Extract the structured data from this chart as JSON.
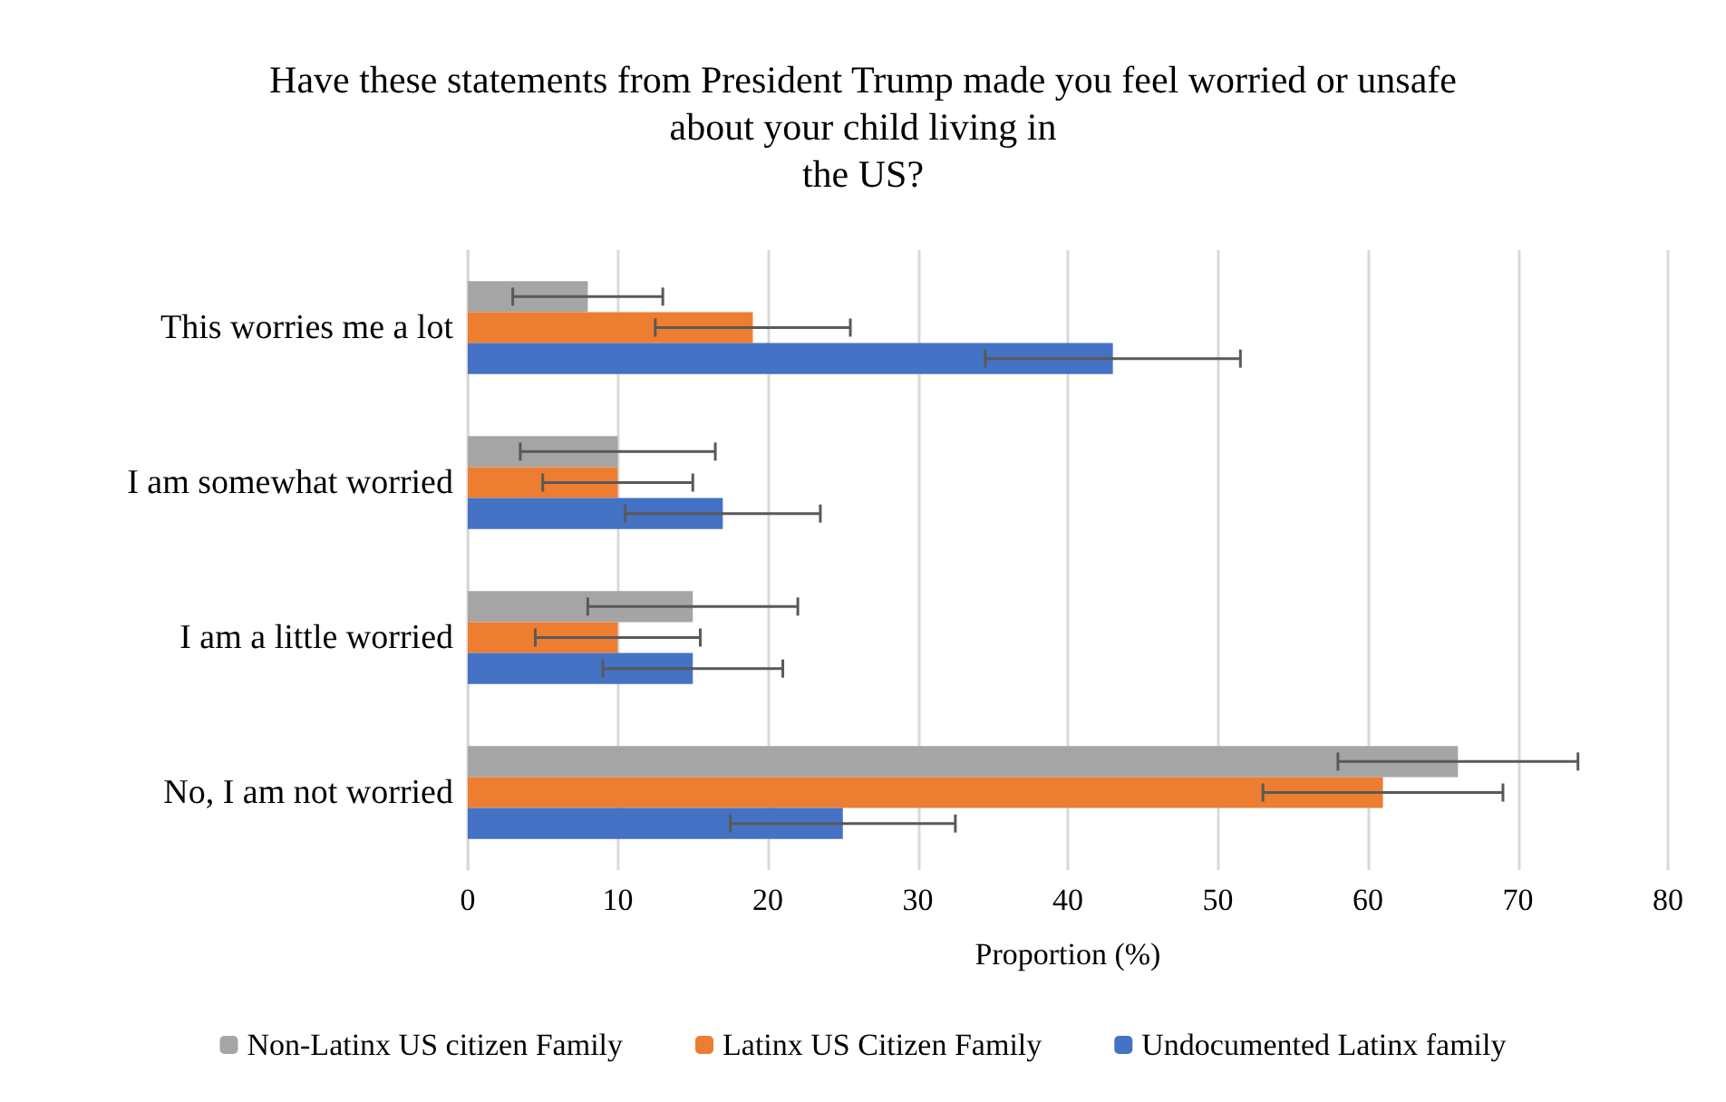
{
  "chart_data": {
    "type": "bar",
    "orientation": "horizontal",
    "title": "Have these statements from President Trump made you feel worried or unsafe\nabout your child living in\nthe US?",
    "xlabel": "Proportion (%)",
    "categories": [
      "This worries me a lot",
      "I am somewhat worried",
      "I am a little worried",
      "No, I am not worried"
    ],
    "series": [
      {
        "name": "Non-Latinx US citizen Family",
        "color": "#a5a5a5",
        "values": [
          8,
          10,
          15,
          66
        ],
        "errors": [
          5,
          6.5,
          7,
          8
        ]
      },
      {
        "name": "Latinx US Citizen Family",
        "color": "#ed7d31",
        "values": [
          19,
          10,
          10,
          61
        ],
        "errors": [
          6.5,
          5,
          5.5,
          8
        ]
      },
      {
        "name": "Undocumented Latinx family",
        "color": "#4472c4",
        "values": [
          43,
          17,
          15,
          25
        ],
        "errors": [
          8.5,
          6.5,
          6,
          7.5
        ]
      }
    ],
    "xlim": [
      0,
      80
    ],
    "xticks": [
      0,
      10,
      20,
      30,
      40,
      50,
      60,
      70,
      80
    ],
    "grid": "x",
    "legend": "bottom"
  }
}
